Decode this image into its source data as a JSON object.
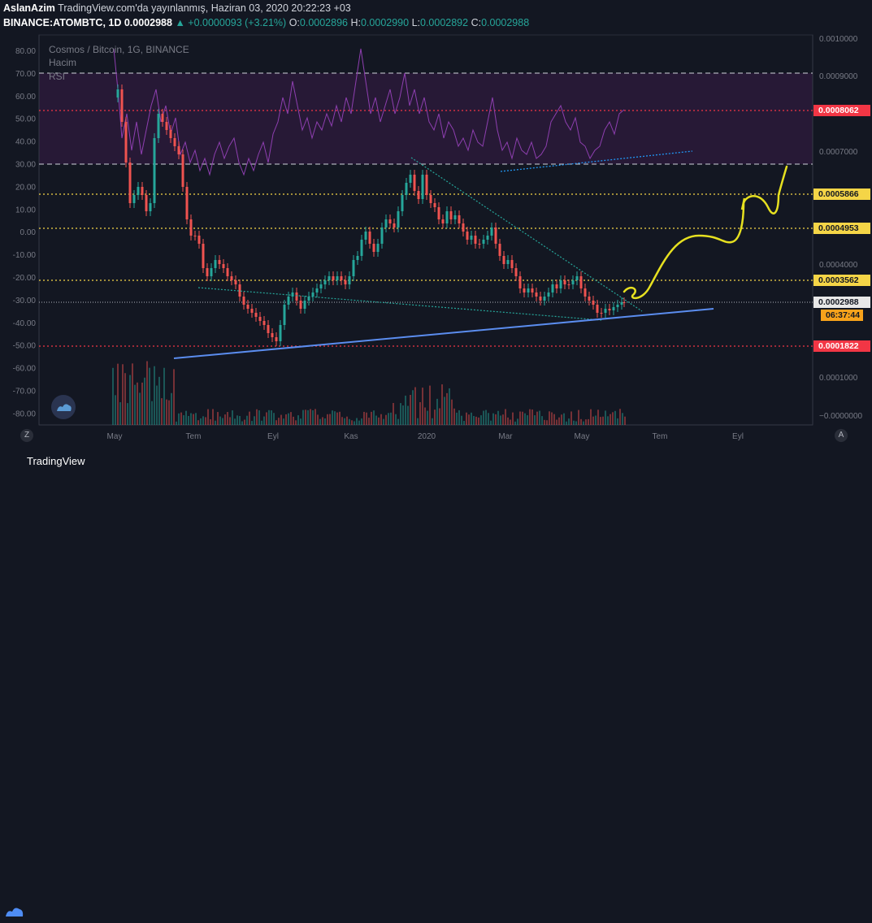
{
  "header": {
    "author": "AslanAzim",
    "published": "TradingView.com'da yayınlanmış, Haziran 03, 2020 20:22:23 +03",
    "symbol": "BINANCE:ATOMBTC, 1D",
    "last": "0.0002988",
    "change": "▲ +0.0000093 (+3.21%)",
    "o_label": "O:",
    "o_value": "0.0002896",
    "h_label": "H:",
    "h_value": "0.0002990",
    "l_label": "L:",
    "l_value": "0.0002892",
    "c_label": "C:",
    "c_value": "0.0002988"
  },
  "legend": {
    "title": "Cosmos / Bitcoin, 1G, BINANCE",
    "volume": "Hacim",
    "rsi": "RSI"
  },
  "left_axis_ticks": [
    "80.00",
    "70.00",
    "60.00",
    "50.00",
    "40.00",
    "30.00",
    "20.00",
    "10.00",
    "0.00",
    "-10.00",
    "-20.00",
    "-30.00",
    "-40.00",
    "-50.00",
    "-60.00",
    "-70.00",
    "-80.00"
  ],
  "right_axis_ticks": [
    "0.0010000",
    "0.0009000",
    "0.0007000",
    "0.0004000",
    "0.0001000",
    "−0.0000000"
  ],
  "price_tags": [
    {
      "text": "0.0008062",
      "style": "red"
    },
    {
      "text": "0.0005866",
      "style": "yellow"
    },
    {
      "text": "0.0004953",
      "style": "yellow"
    },
    {
      "text": "0.0003562",
      "style": "yellow"
    },
    {
      "text": "0.0002988",
      "style": "white"
    },
    {
      "text": "06:37:44",
      "style": "orange"
    },
    {
      "text": "0.0001822",
      "style": "red"
    }
  ],
  "time_axis": [
    "May",
    "Tem",
    "Eyl",
    "Kas",
    "2020",
    "Mar",
    "May",
    "Tem",
    "Eyl"
  ],
  "buttons": {
    "left_scale": "Z",
    "right_scale": "A"
  },
  "footer": {
    "brand": "TradingView"
  },
  "colors": {
    "background": "#131722",
    "rsi_band": "#2a1a38",
    "rsi_line": "#8e3fb0",
    "up_candle": "#26a69a",
    "down_candle": "#ef5350",
    "trendline_blue": "#5b8def",
    "forecast_yellow": "#e6e020"
  }
}
